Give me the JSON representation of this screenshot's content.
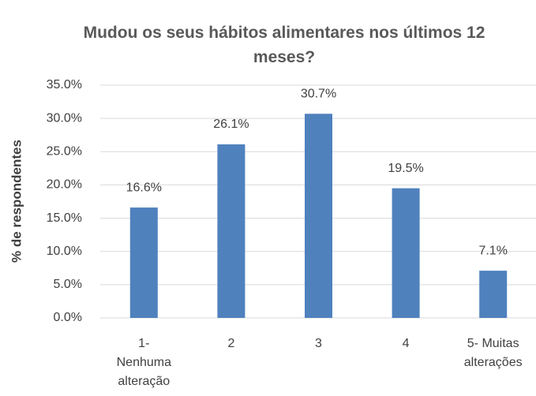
{
  "chart_data": {
    "type": "bar",
    "title": "Mudou os seus hábitos alimentares nos últimos 12 meses?",
    "y_label": "% de respondentes",
    "categories": [
      "1- Nenhuma alteração",
      "2",
      "3",
      "4",
      "5- Muitas alterações"
    ],
    "values": [
      16.6,
      26.1,
      30.7,
      19.5,
      7.1
    ],
    "value_labels": [
      "16.6%",
      "26.1%",
      "30.7%",
      "19.5%",
      "7.1%"
    ],
    "color": "#4f81bd",
    "ylim": [
      0,
      35
    ],
    "yticks": [
      {
        "value": 0,
        "label": "0.0%"
      },
      {
        "value": 5,
        "label": "5.0%"
      },
      {
        "value": 10,
        "label": "10.0%"
      },
      {
        "value": 15,
        "label": "15.0%"
      },
      {
        "value": 20,
        "label": "20.0%"
      },
      {
        "value": 25,
        "label": "25.0%"
      },
      {
        "value": 30,
        "label": "30.0%"
      },
      {
        "value": 35,
        "label": "35.0%"
      }
    ],
    "grid": true
  }
}
